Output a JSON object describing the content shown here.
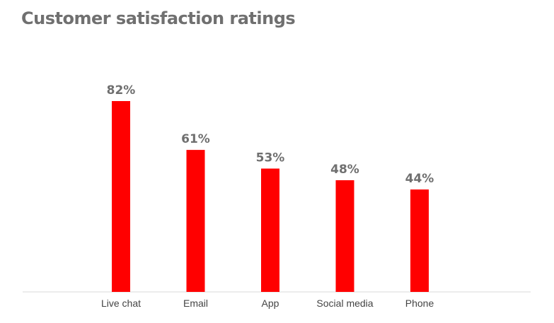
{
  "title": "Customer satisfaction ratings",
  "colors": {
    "bar": "#ff0000",
    "axis": "#d9d9d9",
    "value_text": "#6f6f6f",
    "category_text": "#444444",
    "title_text": "#707070"
  },
  "chart_data": {
    "type": "bar",
    "title": "Customer satisfaction ratings",
    "categories": [
      "Live chat",
      "Email",
      "App",
      "Social media",
      "Phone"
    ],
    "values": [
      82,
      61,
      53,
      48,
      44
    ],
    "value_labels": [
      "82%",
      "61%",
      "53%",
      "48%",
      "44%"
    ],
    "xlabel": "",
    "ylabel": "",
    "ylim": [
      0,
      100
    ],
    "grid": false,
    "legend": "none"
  }
}
